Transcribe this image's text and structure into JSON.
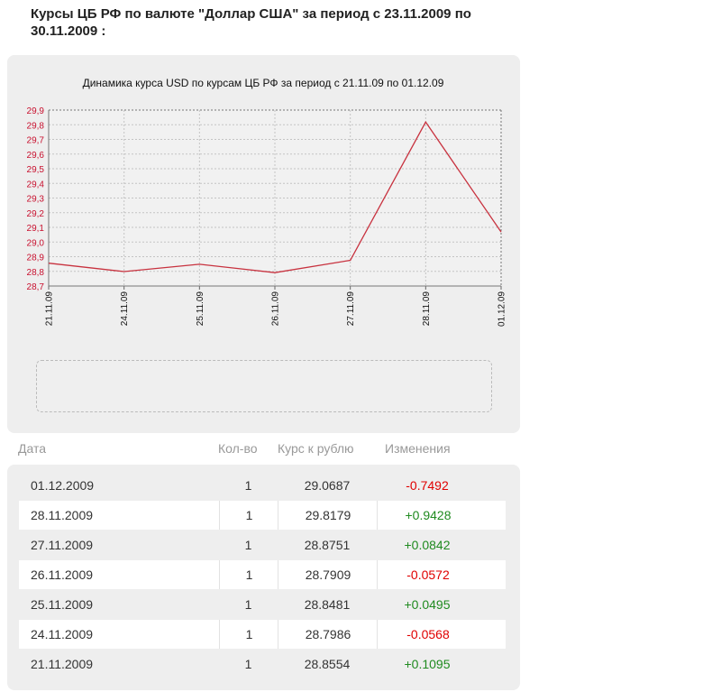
{
  "page": {
    "title": "Курсы ЦБ РФ по валюте \"Доллар США\" за период с 23.11.2009 по 30.11.2009 :"
  },
  "colors": {
    "line": "#c8323f",
    "tick_label": "#c8102e",
    "negative": "#e00000",
    "positive": "#1f8a1f"
  },
  "chart_data": {
    "type": "line",
    "title": "Динамика курса USD по курсам ЦБ РФ за период с 21.11.09 по 01.12.09",
    "categories": [
      "21.11.09",
      "24.11.09",
      "25.11.09",
      "26.11.09",
      "27.11.09",
      "28.11.09",
      "01.12.09"
    ],
    "series": [
      {
        "values": [
          28.8554,
          28.7986,
          28.8481,
          28.7909,
          28.8751,
          29.8179,
          29.0687
        ]
      }
    ],
    "ylim": [
      28.7,
      29.9
    ],
    "yticks": [
      "28,7",
      "28,8",
      "28,9",
      "29,0",
      "29,1",
      "29,2",
      "29,3",
      "29,4",
      "29,5",
      "29,6",
      "29,7",
      "29,8",
      "29,9"
    ],
    "grid": true,
    "xlabel": "",
    "ylabel": ""
  },
  "table": {
    "headers": {
      "date": "Дата",
      "qty": "Кол-во",
      "rate": "Курс к рублю",
      "change": "Изменения"
    },
    "rows": [
      {
        "date": "01.12.2009",
        "qty": "1",
        "rate": "29.0687",
        "change": "-0.7492"
      },
      {
        "date": "28.11.2009",
        "qty": "1",
        "rate": "29.8179",
        "change": "+0.9428"
      },
      {
        "date": "27.11.2009",
        "qty": "1",
        "rate": "28.8751",
        "change": "+0.0842"
      },
      {
        "date": "26.11.2009",
        "qty": "1",
        "rate": "28.7909",
        "change": "-0.0572"
      },
      {
        "date": "25.11.2009",
        "qty": "1",
        "rate": "28.8481",
        "change": "+0.0495"
      },
      {
        "date": "24.11.2009",
        "qty": "1",
        "rate": "28.7986",
        "change": "-0.0568"
      },
      {
        "date": "21.11.2009",
        "qty": "1",
        "rate": "28.8554",
        "change": "+0.1095"
      }
    ]
  }
}
